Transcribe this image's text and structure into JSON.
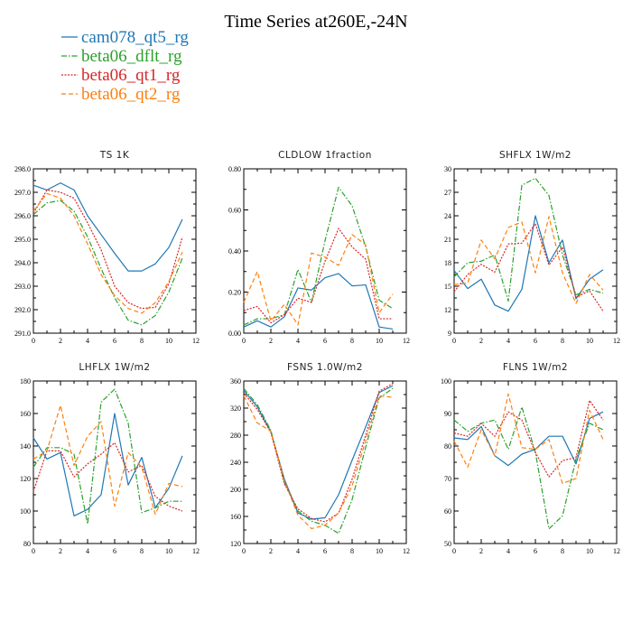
{
  "page_title": "Time Series at260E,-24N",
  "legend": [
    {
      "name": "cam078_qt5_rg",
      "color": "#1f77b4",
      "dash": ""
    },
    {
      "name": "beta06_dflt_rg",
      "color": "#2ca02c",
      "dash": "6,2,1.5,2"
    },
    {
      "name": "beta06_qt1_rg",
      "color": "#d62728",
      "dash": "2,1.5"
    },
    {
      "name": "beta06_qt2_rg",
      "color": "#ff7f0e",
      "dash": "5,3"
    }
  ],
  "chart_data": [
    {
      "type": "line",
      "title": "TS   1K",
      "xlim": [
        0,
        12
      ],
      "ylim": [
        291.0,
        298.0
      ],
      "xticks": [
        0,
        2,
        4,
        6,
        8,
        10,
        12
      ],
      "yticks": [
        291.0,
        292.0,
        293.0,
        294.0,
        295.0,
        296.0,
        297.0,
        298.0
      ],
      "ytick_decimals": 1,
      "x": [
        0,
        1,
        2,
        3,
        4,
        5,
        6,
        7,
        8,
        9,
        10,
        11
      ],
      "series": [
        {
          "name": "cam078_qt5_rg",
          "values": [
            297.3,
            297.1,
            297.4,
            297.1,
            296.0,
            295.2,
            294.4,
            293.65,
            293.65,
            293.95,
            294.65,
            295.85
          ]
        },
        {
          "name": "beta06_dflt_rg",
          "values": [
            296.05,
            296.55,
            296.65,
            296.2,
            295.1,
            293.75,
            292.5,
            291.55,
            291.35,
            291.75,
            292.75,
            294.2
          ]
        },
        {
          "name": "beta06_qt1_rg",
          "values": [
            296.1,
            297.1,
            297.0,
            296.75,
            295.7,
            294.55,
            293.0,
            292.3,
            292.05,
            292.1,
            293.1,
            295.1
          ]
        },
        {
          "name": "beta06_qt2_rg",
          "values": [
            296.2,
            296.95,
            296.75,
            296.0,
            294.8,
            293.5,
            292.6,
            292.05,
            291.85,
            292.3,
            293.2,
            294.45
          ]
        }
      ]
    },
    {
      "type": "line",
      "title": "CLDLOW   1fraction",
      "xlim": [
        0,
        12
      ],
      "ylim": [
        0.0,
        0.8
      ],
      "xticks": [
        0,
        2,
        4,
        6,
        8,
        10,
        12
      ],
      "yticks": [
        0.0,
        0.2,
        0.4,
        0.6,
        0.8
      ],
      "ytick_decimals": 2,
      "x": [
        0,
        1,
        2,
        3,
        4,
        5,
        6,
        7,
        8,
        9,
        10,
        11
      ],
      "series": [
        {
          "name": "cam078_qt5_rg",
          "values": [
            0.03,
            0.06,
            0.03,
            0.08,
            0.22,
            0.21,
            0.27,
            0.29,
            0.23,
            0.235,
            0.03,
            0.02
          ]
        },
        {
          "name": "beta06_dflt_rg",
          "values": [
            0.04,
            0.07,
            0.07,
            0.09,
            0.31,
            0.15,
            0.45,
            0.71,
            0.62,
            0.42,
            0.16,
            0.12
          ]
        },
        {
          "name": "beta06_qt1_rg",
          "values": [
            0.11,
            0.13,
            0.05,
            0.09,
            0.17,
            0.15,
            0.35,
            0.51,
            0.42,
            0.36,
            0.07,
            0.07
          ]
        },
        {
          "name": "beta06_qt2_rg",
          "values": [
            0.15,
            0.3,
            0.06,
            0.14,
            0.04,
            0.39,
            0.37,
            0.33,
            0.48,
            0.43,
            0.1,
            0.19
          ]
        }
      ]
    },
    {
      "type": "line",
      "title": "SHFLX   1W/m2",
      "xlim": [
        0,
        12
      ],
      "ylim": [
        9,
        30
      ],
      "xticks": [
        0,
        2,
        4,
        6,
        8,
        10,
        12
      ],
      "yticks": [
        9,
        12,
        15,
        18,
        21,
        24,
        27,
        30
      ],
      "ytick_decimals": 0,
      "x": [
        0,
        1,
        2,
        3,
        4,
        5,
        6,
        7,
        8,
        9,
        10,
        11
      ],
      "series": [
        {
          "name": "cam078_qt5_rg",
          "values": [
            17.0,
            14.7,
            15.9,
            12.6,
            11.8,
            14.6,
            24.0,
            18.0,
            20.9,
            13.4,
            15.9,
            17.1
          ]
        },
        {
          "name": "beta06_dflt_rg",
          "values": [
            16.2,
            18.0,
            18.2,
            19.0,
            13.1,
            27.9,
            28.8,
            26.6,
            19.0,
            13.9,
            14.6,
            14.1
          ]
        },
        {
          "name": "beta06_qt1_rg",
          "values": [
            14.3,
            16.5,
            17.8,
            16.8,
            20.4,
            20.5,
            23.0,
            17.7,
            20.0,
            13.6,
            14.4,
            11.8
          ]
        },
        {
          "name": "beta06_qt2_rg",
          "values": [
            15.2,
            15.4,
            20.9,
            18.5,
            22.5,
            23.2,
            16.7,
            23.9,
            16.7,
            12.8,
            16.5,
            14.5
          ]
        }
      ]
    },
    {
      "type": "line",
      "title": "LHFLX   1W/m2",
      "xlim": [
        0,
        12
      ],
      "ylim": [
        80,
        180
      ],
      "xticks": [
        0,
        2,
        4,
        6,
        8,
        10,
        12
      ],
      "yticks": [
        80,
        100,
        120,
        140,
        160,
        180
      ],
      "ytick_decimals": 0,
      "x": [
        0,
        1,
        2,
        3,
        4,
        5,
        6,
        7,
        8,
        9,
        10,
        11
      ],
      "series": [
        {
          "name": "cam078_qt5_rg",
          "values": [
            145,
            132,
            136,
            97,
            101,
            110,
            160,
            116,
            133,
            102,
            114,
            134
          ]
        },
        {
          "name": "beta06_dflt_rg",
          "values": [
            127,
            139,
            139,
            135,
            92,
            167,
            175,
            154,
            99,
            102,
            106,
            106
          ]
        },
        {
          "name": "beta06_qt1_rg",
          "values": [
            112,
            137,
            137,
            121,
            129,
            135,
            142,
            124,
            128,
            109,
            103,
            100
          ]
        },
        {
          "name": "beta06_qt2_rg",
          "values": [
            132,
            137,
            165,
            128,
            146,
            155,
            103,
            136,
            127,
            98,
            117,
            115
          ]
        }
      ]
    },
    {
      "type": "line",
      "title": "FSNS   1.0W/m2",
      "xlim": [
        0,
        12
      ],
      "ylim": [
        120,
        360
      ],
      "xticks": [
        0,
        2,
        4,
        6,
        8,
        10,
        12
      ],
      "yticks": [
        120,
        160,
        200,
        240,
        280,
        320,
        360
      ],
      "ytick_decimals": 0,
      "x": [
        0,
        1,
        2,
        3,
        4,
        5,
        6,
        7,
        8,
        9,
        10,
        11
      ],
      "series": [
        {
          "name": "cam078_qt5_rg",
          "values": [
            346,
            322,
            285,
            215,
            165,
            156,
            158,
            192,
            243,
            292,
            343,
            353
          ]
        },
        {
          "name": "beta06_dflt_rg",
          "values": [
            349,
            325,
            287,
            210,
            168,
            153,
            147,
            135,
            185,
            262,
            335,
            349
          ]
        },
        {
          "name": "beta06_qt1_rg",
          "values": [
            342,
            318,
            284,
            208,
            171,
            157,
            152,
            165,
            215,
            280,
            345,
            356
          ]
        },
        {
          "name": "beta06_qt2_rg",
          "values": [
            338,
            298,
            286,
            212,
            162,
            142,
            147,
            165,
            205,
            272,
            338,
            336
          ]
        }
      ]
    },
    {
      "type": "line",
      "title": "FLNS   1W/m2",
      "xlim": [
        0,
        12
      ],
      "ylim": [
        50,
        100
      ],
      "xticks": [
        0,
        2,
        4,
        6,
        8,
        10,
        12
      ],
      "yticks": [
        50,
        60,
        70,
        80,
        90,
        100
      ],
      "ytick_decimals": 0,
      "x": [
        0,
        1,
        2,
        3,
        4,
        5,
        6,
        7,
        8,
        9,
        10,
        11
      ],
      "series": [
        {
          "name": "cam078_qt5_rg",
          "values": [
            82.5,
            82.0,
            86.0,
            77.0,
            74.0,
            77.5,
            79.0,
            83.0,
            83.0,
            74.5,
            88.5,
            90.5
          ]
        },
        {
          "name": "beta06_dflt_rg",
          "values": [
            88.0,
            84.5,
            87.0,
            88.0,
            79.0,
            92.0,
            78.0,
            54.5,
            58.5,
            76.0,
            87.0,
            85.0
          ]
        },
        {
          "name": "beta06_qt1_rg",
          "values": [
            84.0,
            83.0,
            87.0,
            83.0,
            90.5,
            88.0,
            78.0,
            70.5,
            75.5,
            76.5,
            94.0,
            88.0
          ]
        },
        {
          "name": "beta06_qt2_rg",
          "values": [
            81.5,
            73.5,
            85.0,
            77.0,
            96.0,
            79.5,
            79.0,
            82.0,
            68.5,
            70.0,
            91.0,
            82.0
          ]
        }
      ]
    }
  ]
}
